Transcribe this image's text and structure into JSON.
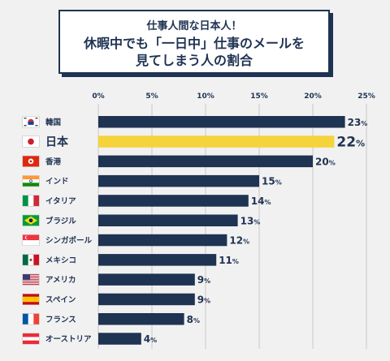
{
  "title": {
    "line1": "仕事人間な日本人！",
    "line2": "休暇中でも「一日中」仕事のメールを",
    "line3": "見てしまう人の割合"
  },
  "colors": {
    "bar": "#1f3352",
    "highlight": "#f5d33a",
    "text": "#1f3352"
  },
  "chart_data": {
    "type": "bar",
    "orientation": "horizontal",
    "x_ticks": [
      "0%",
      "5%",
      "10%",
      "15%",
      "20%",
      "25%"
    ],
    "xlim": [
      0,
      25
    ],
    "grid": true,
    "categories": [
      "韓国",
      "日本",
      "香港",
      "インド",
      "イタリア",
      "ブラジル",
      "シンガポール",
      "メキシコ",
      "アメリカ",
      "スペイン",
      "フランス",
      "オーストリア"
    ],
    "values": [
      23,
      22,
      20,
      15,
      14,
      13,
      12,
      11,
      9,
      9,
      8,
      4
    ],
    "value_labels": [
      "23",
      "22",
      "20",
      "15",
      "14",
      "13",
      "12",
      "11",
      "9",
      "9",
      "8",
      "4"
    ],
    "value_unit": "%",
    "highlight_category": "日本",
    "flags": [
      "korea-flag-icon",
      "japan-flag-icon",
      "hongkong-flag-icon",
      "india-flag-icon",
      "italy-flag-icon",
      "brazil-flag-icon",
      "singapore-flag-icon",
      "mexico-flag-icon",
      "usa-flag-icon",
      "spain-flag-icon",
      "france-flag-icon",
      "austria-flag-icon"
    ]
  }
}
